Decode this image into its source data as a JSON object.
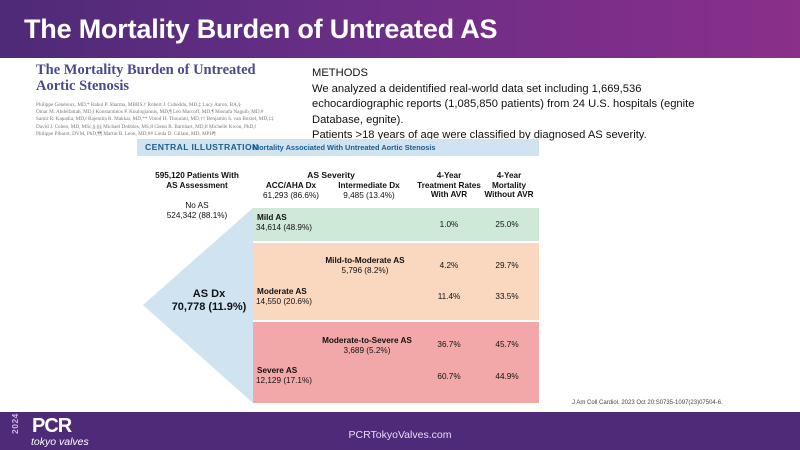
{
  "slide": {
    "title": "The Mortality Burden of Untreated AS"
  },
  "paper": {
    "title_line1": "The Mortality Burden of Untreated",
    "title_line2": "Aortic Stenosis",
    "authors": [
      "Philippe Généreux, MD,* Rahul P. Sharma, MBBS,† Robert J. Cubeddu, MD,‡ Lucy Aaron, BA,§",
      "Omar M. Abdelfattah, MD,‖ Konstantinos P. Koulogiannis, MD,¶ Leo Marcoff, MD,¶ Mostafa Naguib, MD,#",
      "Samir R. Kapadia, MD,‖ Rajendra R. Makkar, MD,** Vinod H. Thourani, MD,†† Benjamin S. van Boxtel, MD,‡‡",
      "David J. Cohen, MD, MSc,§,§§ Michael Dobbles, MS,‖‖ Glenn R. Barnhart, MD,‖‖ Michelle Kwon, PhD,‖",
      "Philippe Pibarot, DVM, PhD,¶¶ Martin B. Leon, MD,## Linda D. Gillam, MD, MPH¶"
    ]
  },
  "methods": {
    "heading": "METHODS",
    "line1": "We analyzed a deidentified real-world data set including 1,669,536",
    "line2": "echocardiographic reports (1,085,850 patients) from 24 U.S. hospitals (egnite",
    "line3": "Database, egnite).",
    "line4": "Patients >18 years of age were classified by diagnosed AS severity."
  },
  "central_illustration": {
    "label": "CENTRAL ILLUSTRATION",
    "subtitle": "Mortality Associated With Untreated Aortic Stenosis",
    "total_line1": "595,120 Patients With",
    "total_line2": "AS Assessment",
    "no_as_label": "No AS",
    "no_as_value": "524,342 (88.1%)",
    "as_dx_label": "AS Dx",
    "as_dx_value": "70,778 (11.9%)",
    "header_severity": "AS Severity",
    "header_acc": "ACC/AHA Dx",
    "header_acc_value": "61,293 (86.6%)",
    "header_int": "Intermediate Dx",
    "header_int_value": "9,485 (13.4%)",
    "header_treat_1": "4-Year",
    "header_treat_2": "Treatment Rates",
    "header_treat_3": "With AVR",
    "header_mort_1": "4-Year",
    "header_mort_2": "Mortality",
    "header_mort_3": "Without AVR",
    "rows": [
      {
        "label": "Mild AS",
        "value": "34,614 (48.9%)",
        "treat": "1.0%",
        "mort": "25.0%"
      },
      {
        "label": "Mild-to-Moderate AS",
        "value": "5,796 (8.2%)",
        "treat": "4.2%",
        "mort": "29.7%"
      },
      {
        "label": "Moderate AS",
        "value": "14,550 (20.6%)",
        "treat": "11.4%",
        "mort": "33.5%"
      },
      {
        "label": "Moderate-to-Severe AS",
        "value": "3,689 (5.2%)",
        "treat": "36.7%",
        "mort": "45.7%"
      },
      {
        "label": "Severe AS",
        "value": "12,129 (17.1%)",
        "treat": "60.7%",
        "mort": "44.9%"
      }
    ],
    "colors": {
      "header": "#cfe3f1",
      "arrow": "#cfe3f1",
      "mild": "#cfe9d9",
      "moderate": "#fad8bf",
      "severe": "#f2a8a8"
    }
  },
  "reference": "J Am Coll Cardiol. 2023 Oct 20:S0735-1097(23)07504-6.",
  "footer": {
    "year": "2024",
    "brand": "PCR",
    "brand_sub": "tokyo valves",
    "url": "PCRTokyoValves.com"
  }
}
